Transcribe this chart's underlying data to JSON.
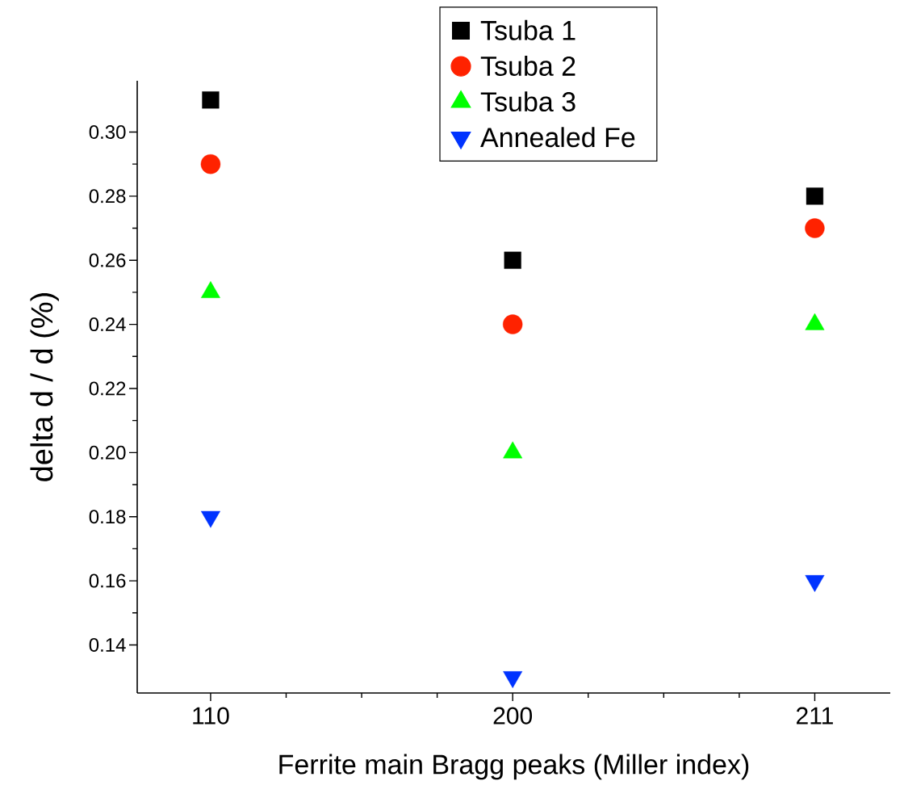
{
  "chart_data": {
    "type": "scatter",
    "xlabel": "Ferrite main Bragg peaks (Miller index)",
    "ylabel": "delta d / d (%)",
    "categories": [
      "110",
      "200",
      "211"
    ],
    "series": [
      {
        "name": "Tsuba 1",
        "color": "#000000",
        "marker": "square",
        "values": [
          0.31,
          0.26,
          0.28
        ]
      },
      {
        "name": "Tsuba 2",
        "color": "#ff2200",
        "marker": "circle",
        "values": [
          0.29,
          0.24,
          0.27
        ]
      },
      {
        "name": "Tsuba 3",
        "color": "#00ff00",
        "marker": "triangle",
        "values": [
          0.25,
          0.2,
          0.24
        ]
      },
      {
        "name": "Annealed Fe",
        "color": "#0033ff",
        "marker": "triangle-down",
        "values": [
          0.18,
          0.13,
          0.16
        ]
      }
    ],
    "ylim": [
      0.125,
      0.316
    ],
    "yticks": [
      {
        "value": 0.14,
        "label": "0.14"
      },
      {
        "value": 0.16,
        "label": "0.16"
      },
      {
        "value": 0.18,
        "label": "0.18"
      },
      {
        "value": 0.2,
        "label": "0.20"
      },
      {
        "value": 0.22,
        "label": "0.22"
      },
      {
        "value": 0.24,
        "label": "0.24"
      },
      {
        "value": 0.26,
        "label": "0.26"
      },
      {
        "value": 0.28,
        "label": "0.28"
      },
      {
        "value": 0.3,
        "label": "0.30"
      }
    ],
    "legend": "top",
    "grid": false
  }
}
